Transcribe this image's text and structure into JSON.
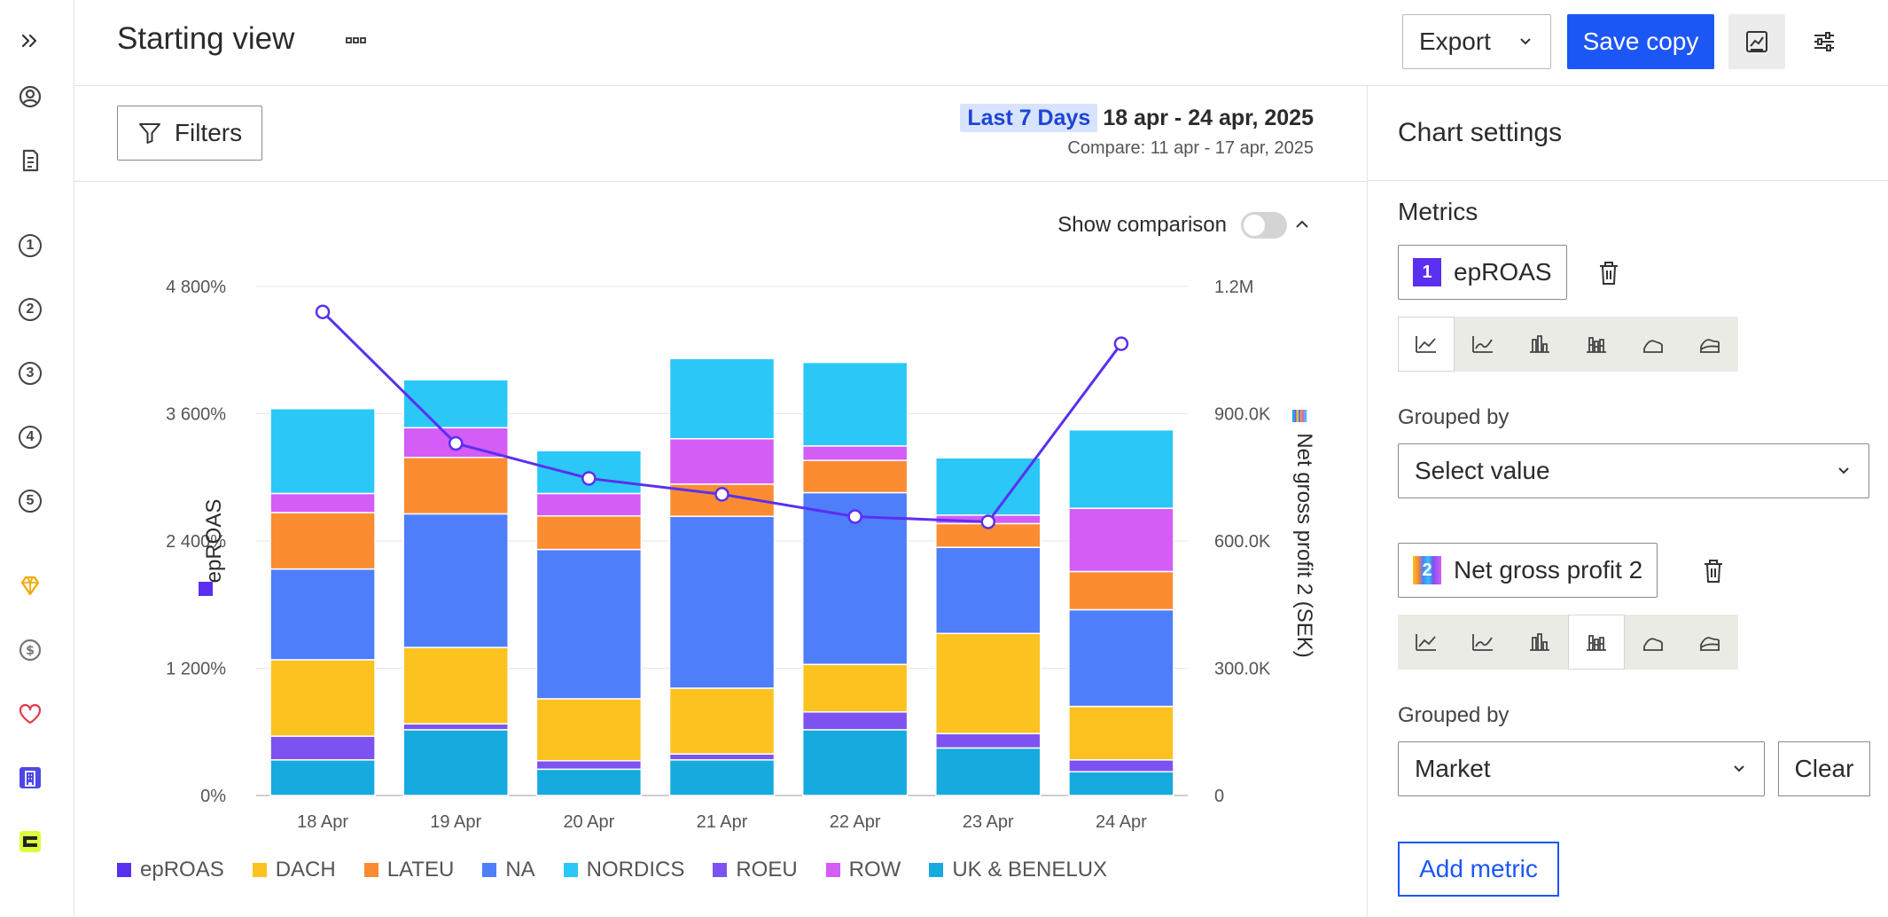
{
  "header": {
    "title": "Starting view",
    "export_label": "Export",
    "save_label": "Save copy"
  },
  "sidebar": {
    "numbers": [
      "1",
      "2",
      "3",
      "4",
      "5"
    ]
  },
  "subbar": {
    "filters_label": "Filters",
    "date_badge": "Last 7 Days",
    "date_range": "18 apr - 24 apr, 2025",
    "compare_text": "Compare: 11 apr - 17 apr, 2025"
  },
  "chart_controls": {
    "show_comparison_label": "Show comparison",
    "show_comparison_on": false
  },
  "chart_data": {
    "type": "bar",
    "stacked": true,
    "categories": [
      "18 Apr",
      "19 Apr",
      "20 Apr",
      "21 Apr",
      "22 Apr",
      "23 Apr",
      "24 Apr"
    ],
    "series": [
      {
        "name": "UK & BENELUX",
        "color": "#16aadf",
        "axis": "right",
        "values": [
          84000,
          155000,
          62000,
          84000,
          155000,
          112000,
          56000
        ]
      },
      {
        "name": "ROEU",
        "color": "#7e52f1",
        "axis": "right",
        "values": [
          56000,
          14000,
          20000,
          14000,
          42000,
          34000,
          28000
        ]
      },
      {
        "name": "DACH",
        "color": "#fcc21f",
        "axis": "right",
        "values": [
          180000,
          180000,
          146000,
          155000,
          112000,
          236000,
          126000
        ]
      },
      {
        "name": "NA",
        "color": "#4f7efb",
        "axis": "right",
        "values": [
          214000,
          315000,
          352000,
          405000,
          405000,
          203000,
          228000
        ]
      },
      {
        "name": "LATEU",
        "color": "#fb8c31",
        "axis": "right",
        "values": [
          133000,
          133000,
          79000,
          76000,
          76000,
          56000,
          90000
        ]
      },
      {
        "name": "ROW",
        "color": "#d45cf7",
        "axis": "right",
        "values": [
          45000,
          70000,
          53000,
          107000,
          34000,
          20000,
          149000
        ]
      },
      {
        "name": "NORDICS",
        "color": "#2bc7f7",
        "axis": "right",
        "values": [
          200000,
          113000,
          101000,
          189000,
          197000,
          135000,
          185000
        ]
      }
    ],
    "line_series": {
      "name": "epROAS",
      "color": "#5b2ff0",
      "axis": "left",
      "values": [
        4560,
        3320,
        2990,
        2840,
        2630,
        2580,
        4260
      ]
    },
    "left_axis": {
      "label": "epROAS",
      "ticks": [
        "0%",
        "1 200%",
        "2 400%",
        "3 600%",
        "4 800%"
      ],
      "min": 0,
      "max": 4800
    },
    "right_axis": {
      "label": "Net gross profit 2 (SEK)",
      "ticks": [
        "0",
        "300.0K",
        "600.0K",
        "900.0K",
        "1.2M"
      ],
      "min": 0,
      "max": 1200000
    },
    "legend": [
      {
        "name": "epROAS",
        "color": "#5b2ff0"
      },
      {
        "name": "DACH",
        "color": "#fcc21f"
      },
      {
        "name": "LATEU",
        "color": "#fb8c31"
      },
      {
        "name": "NA",
        "color": "#4f7efb"
      },
      {
        "name": "NORDICS",
        "color": "#2bc7f7"
      },
      {
        "name": "ROEU",
        "color": "#7e52f1"
      },
      {
        "name": "ROW",
        "color": "#d45cf7"
      },
      {
        "name": "UK & BENELUX",
        "color": "#16aadf"
      }
    ]
  },
  "settings": {
    "title": "Chart settings",
    "metrics_label": "Metrics",
    "metric1": {
      "number": "1",
      "name": "epROAS",
      "color": "#5b2ff0",
      "grouped_by_label": "Grouped by",
      "grouped_by_value": "Select value",
      "active_type": 0
    },
    "metric2": {
      "number": "2",
      "name": "Net gross profit 2",
      "grouped_by_label": "Grouped by",
      "grouped_by_value": "Market",
      "clear_label": "Clear",
      "active_type": 3
    },
    "chart_types": [
      "line",
      "smooth-line",
      "bar",
      "stacked-bar",
      "area",
      "stacked-area"
    ],
    "add_metric_label": "Add metric"
  }
}
